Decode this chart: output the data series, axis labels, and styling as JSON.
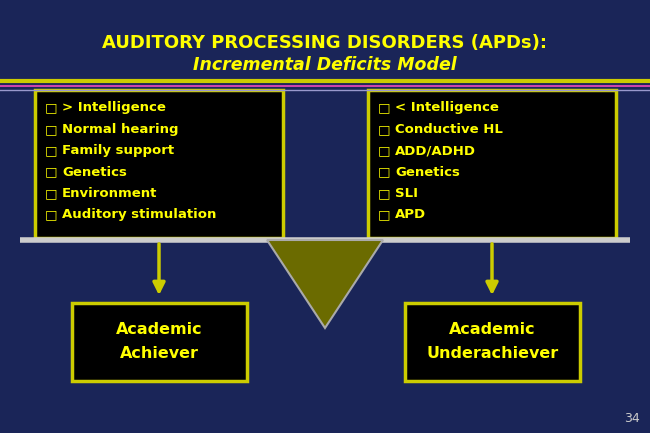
{
  "title_line1": "AUDITORY PROCESSING DISORDERS (APDs):",
  "title_line2": "Incremental Deficits Model",
  "title_color": "#FFFF00",
  "bg_color": "#1a2558",
  "sep_color1": "#CCCC00",
  "sep_color2": "#CC44AA",
  "sep_color3": "#9999CC",
  "left_items": [
    "> Intelligence",
    "Normal hearing",
    "Family support",
    "Genetics",
    "Environment",
    "Auditory stimulation"
  ],
  "right_items": [
    "< Intelligence",
    "Conductive HL",
    "ADD/ADHD",
    "Genetics",
    "SLI",
    "APD"
  ],
  "left_label_line1": "Academic",
  "left_label_line2": "Achiever",
  "right_label_line1": "Academic",
  "right_label_line2": "Underachiever",
  "item_color": "#FFFF00",
  "box_bg": "#000000",
  "box_border": "#CCCC00",
  "arrow_color": "#CCCC00",
  "triangle_color": "#6b6b00",
  "triangle_border": "#aaaaaa",
  "page_number": "34",
  "page_number_color": "#CCCCCC",
  "beam_color": "#CCCCCC"
}
